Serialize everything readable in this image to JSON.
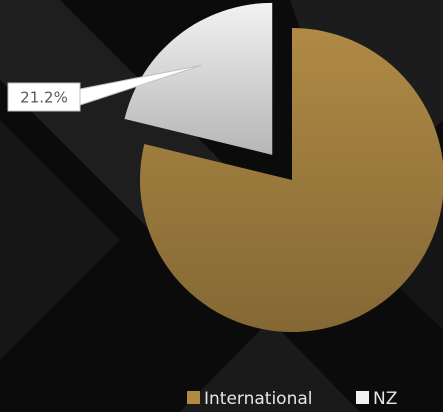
{
  "chart_data": {
    "type": "pie",
    "categories": [
      "International",
      "NZ"
    ],
    "values": [
      78.8,
      21.2
    ],
    "value_labels": [
      null,
      "21.2%"
    ],
    "colors": [
      "#b08a45",
      "#f2f2f2"
    ],
    "legend": "bottom"
  }
}
